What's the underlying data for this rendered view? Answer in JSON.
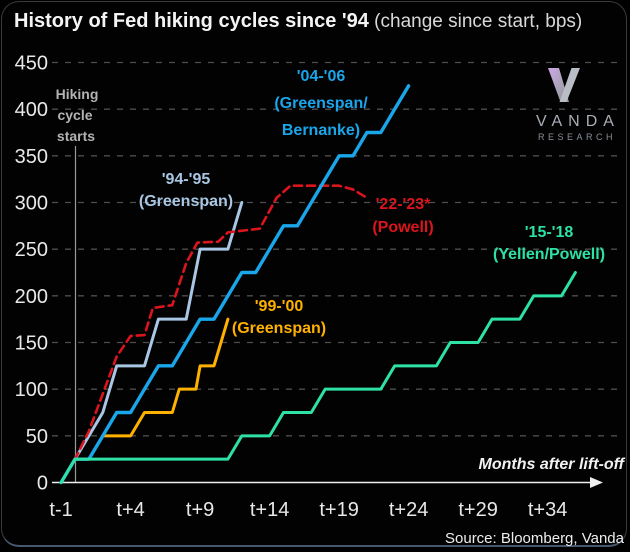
{
  "header": {
    "title_bold": "History of Fed hiking cycles since '94",
    "title_note": " (change since start, bps)"
  },
  "logo": {
    "name": "VANDA",
    "subname": "RESEARCH"
  },
  "axis": {
    "y_ticks": [
      "450",
      "400",
      "350",
      "300",
      "250",
      "200",
      "150",
      "100",
      "50",
      "0"
    ],
    "x_ticks": [
      "t-1",
      "t+4",
      "t+9",
      "t+14",
      "t+19",
      "t+24",
      "t+29",
      "t+34"
    ],
    "y_label_lines": [
      "Hiking",
      "cycle",
      "starts"
    ],
    "x_axis_label": "Months after lift-off"
  },
  "source": "Source: Bloomberg, Vanda",
  "chart_data": {
    "type": "line",
    "title": "History of Fed hiking cycles since '94 (change since start, bps)",
    "xlabel": "Months after lift-off",
    "ylabel": "Change since start, bps",
    "xlim": [
      -1,
      37
    ],
    "ylim": [
      0,
      450
    ],
    "grid": "horizontal dashed every 50 bps",
    "x_tick_months": [
      -1,
      4,
      9,
      14,
      19,
      24,
      29,
      34
    ],
    "series": [
      {
        "key": "94-95",
        "name": "'94-'95 (Greenspan)",
        "label_lines": [
          "'94-'95",
          "(Greenspan)"
        ],
        "color": "#A9C7E4",
        "dashed": false,
        "width": 3,
        "points": [
          [
            -1,
            0
          ],
          [
            0,
            25
          ],
          [
            1,
            50
          ],
          [
            2,
            75
          ],
          [
            3,
            125
          ],
          [
            5,
            125
          ],
          [
            6,
            175
          ],
          [
            8,
            175
          ],
          [
            9,
            250
          ],
          [
            11,
            250
          ],
          [
            12,
            300
          ]
        ]
      },
      {
        "key": "22-23",
        "name": "'22-'23* (Powell)",
        "label_lines": [
          "'22-'23*",
          "(Powell)"
        ],
        "color": "#DC151D",
        "dashed": true,
        "width": 2.6,
        "points": [
          [
            -1,
            0
          ],
          [
            0,
            25
          ],
          [
            1,
            55
          ],
          [
            2,
            95
          ],
          [
            3,
            135
          ],
          [
            4,
            157
          ],
          [
            5,
            158
          ],
          [
            5.6,
            187
          ],
          [
            7,
            190
          ],
          [
            8,
            235
          ],
          [
            8.8,
            257
          ],
          [
            10.3,
            258
          ],
          [
            11,
            268
          ],
          [
            13.3,
            272
          ],
          [
            14.5,
            305
          ],
          [
            15.5,
            318
          ],
          [
            19,
            318
          ],
          [
            20,
            314
          ],
          [
            21,
            305
          ]
        ]
      },
      {
        "key": "99-00",
        "name": "'99-'00 (Greenspan)",
        "label_lines": [
          "'99-'00",
          "(Greenspan)"
        ],
        "color": "#FFB100",
        "dashed": false,
        "width": 3,
        "points": [
          [
            -1,
            0
          ],
          [
            0,
            25
          ],
          [
            1,
            25
          ],
          [
            2,
            50
          ],
          [
            4,
            50
          ],
          [
            5,
            75
          ],
          [
            7,
            75
          ],
          [
            7.5,
            100
          ],
          [
            8.7,
            100
          ],
          [
            9,
            125
          ],
          [
            10,
            125
          ],
          [
            11,
            175
          ]
        ]
      },
      {
        "key": "04-06",
        "name": "'04-'06 (Greenspan/Bernanke)",
        "label_lines": [
          "'04-'06",
          "(Greenspan/",
          "Bernanke)"
        ],
        "color": "#1AA6EB",
        "dashed": false,
        "width": 3.4,
        "points": [
          [
            -1,
            0
          ],
          [
            0,
            25
          ],
          [
            1,
            25
          ],
          [
            2,
            50
          ],
          [
            3,
            75
          ],
          [
            4,
            75
          ],
          [
            5,
            100
          ],
          [
            6,
            125
          ],
          [
            7,
            125
          ],
          [
            8,
            150
          ],
          [
            9,
            175
          ],
          [
            10,
            175
          ],
          [
            11,
            200
          ],
          [
            12,
            225
          ],
          [
            13,
            225
          ],
          [
            14,
            250
          ],
          [
            15,
            275
          ],
          [
            16,
            275
          ],
          [
            17,
            300
          ],
          [
            18,
            325
          ],
          [
            19,
            350
          ],
          [
            20,
            350
          ],
          [
            21,
            375
          ],
          [
            22,
            375
          ],
          [
            23,
            400
          ],
          [
            24,
            425
          ]
        ]
      },
      {
        "key": "15-18",
        "name": "'15-'18 (Yellen/Powell)",
        "label_lines": [
          "'15-'18",
          "(Yellen/Powell)"
        ],
        "color": "#2EE2A6",
        "dashed": false,
        "width": 3,
        "points": [
          [
            -1,
            0
          ],
          [
            0,
            25
          ],
          [
            11,
            25
          ],
          [
            12,
            50
          ],
          [
            14,
            50
          ],
          [
            15,
            75
          ],
          [
            17,
            75
          ],
          [
            18,
            100
          ],
          [
            22,
            100
          ],
          [
            23,
            125
          ],
          [
            26,
            125
          ],
          [
            27,
            150
          ],
          [
            29,
            150
          ],
          [
            30,
            175
          ],
          [
            32,
            175
          ],
          [
            33,
            200
          ],
          [
            35,
            200
          ],
          [
            36,
            225
          ]
        ]
      }
    ]
  }
}
